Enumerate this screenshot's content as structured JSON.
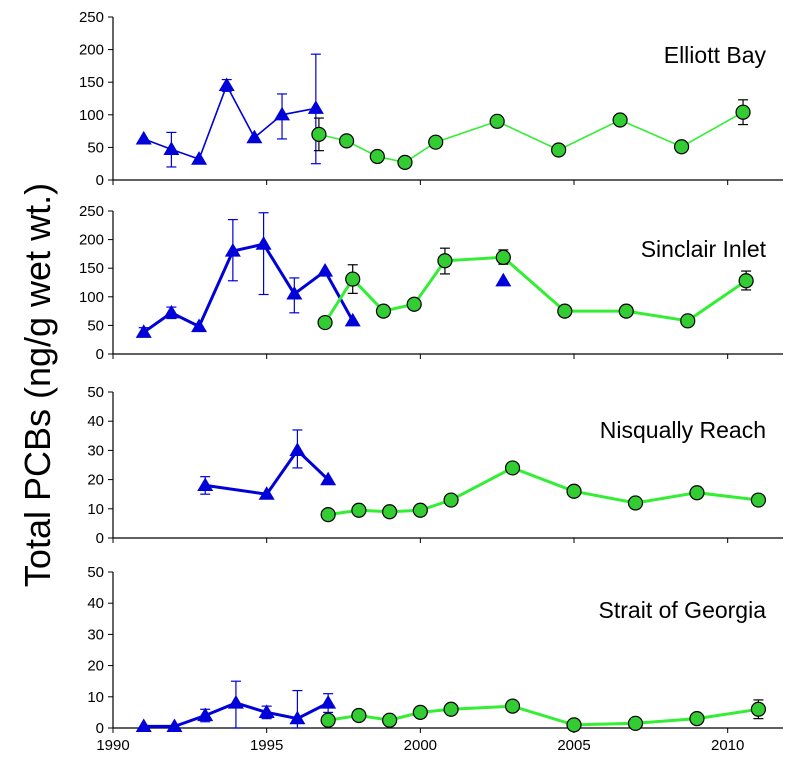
{
  "figure": {
    "ylabel": "Total PCBs (ng/g wet wt.)",
    "x_ticks": [
      1990,
      1995,
      2000,
      2005,
      2010
    ],
    "xlim": [
      1990,
      2011.8
    ]
  },
  "colors": {
    "blue_series": "#0000d8",
    "green_series_line": "#33ee33",
    "green_series_marker": "#33cc33"
  },
  "chart_data": [
    {
      "type": "line",
      "title": "Elliott Bay",
      "ylim": [
        0,
        250
      ],
      "yticks": [
        0,
        50,
        100,
        150,
        200,
        250
      ],
      "series": [
        {
          "marker": "triangle",
          "color": "#0000d8",
          "points": [
            {
              "x": 1991.0,
              "y": 63
            },
            {
              "x": 1991.9,
              "y": 47,
              "err_lo": 20,
              "err_hi": 73
            },
            {
              "x": 1992.8,
              "y": 32
            },
            {
              "x": 1993.7,
              "y": 145,
              "err_lo": 136,
              "err_hi": 154
            },
            {
              "x": 1994.6,
              "y": 65
            },
            {
              "x": 1995.5,
              "y": 100,
              "err_lo": 63,
              "err_hi": 132
            },
            {
              "x": 1996.6,
              "y": 110,
              "err_lo": 25,
              "err_hi": 193
            }
          ]
        },
        {
          "marker": "circle",
          "color": "#33ee33",
          "points": [
            {
              "x": 1996.7,
              "y": 70,
              "err_lo": 45,
              "err_hi": 95
            },
            {
              "x": 1997.6,
              "y": 60
            },
            {
              "x": 1998.6,
              "y": 36
            },
            {
              "x": 1999.5,
              "y": 27
            },
            {
              "x": 2000.5,
              "y": 58
            },
            {
              "x": 2002.5,
              "y": 90
            },
            {
              "x": 2004.5,
              "y": 46
            },
            {
              "x": 2006.5,
              "y": 92
            },
            {
              "x": 2008.5,
              "y": 51
            },
            {
              "x": 2010.5,
              "y": 104,
              "err_lo": 85,
              "err_hi": 123
            }
          ]
        }
      ]
    },
    {
      "type": "line",
      "title": "Sinclair Inlet",
      "ylim": [
        0,
        250
      ],
      "yticks": [
        0,
        50,
        100,
        150,
        200,
        250
      ],
      "series": [
        {
          "marker": "triangle",
          "color": "#0000d8",
          "points": [
            {
              "x": 1991.0,
              "y": 38,
              "err_lo": 30,
              "err_hi": 46
            },
            {
              "x": 1991.9,
              "y": 72,
              "err_lo": 62,
              "err_hi": 82
            },
            {
              "x": 1992.8,
              "y": 48
            },
            {
              "x": 1993.9,
              "y": 180,
              "err_lo": 128,
              "err_hi": 235
            },
            {
              "x": 1994.9,
              "y": 192,
              "err_lo": 104,
              "err_hi": 247
            },
            {
              "x": 1995.9,
              "y": 105,
              "err_lo": 72,
              "err_hi": 133
            },
            {
              "x": 1996.9,
              "y": 145
            },
            {
              "x": 1997.8,
              "y": 58
            }
          ]
        },
        {
          "marker": "circle",
          "color": "#33ee33",
          "points": [
            {
              "x": 1996.9,
              "y": 55
            },
            {
              "x": 1997.8,
              "y": 131,
              "err_lo": 106,
              "err_hi": 156
            },
            {
              "x": 1998.8,
              "y": 75
            },
            {
              "x": 1999.8,
              "y": 87
            },
            {
              "x": 2000.8,
              "y": 163,
              "err_lo": 140,
              "err_hi": 185
            },
            {
              "x": 2002.7,
              "y": 169,
              "err_lo": 157,
              "err_hi": 182
            },
            {
              "x": 2004.7,
              "y": 75
            },
            {
              "x": 2006.7,
              "y": 75
            },
            {
              "x": 2008.7,
              "y": 58
            },
            {
              "x": 2010.6,
              "y": 128,
              "err_lo": 112,
              "err_hi": 145
            }
          ]
        },
        {
          "marker": "triangle",
          "color": "#0000d8",
          "no_line": true,
          "points": [
            {
              "x": 2002.7,
              "y": 128
            }
          ]
        }
      ]
    },
    {
      "type": "line",
      "title": "Nisqually Reach",
      "ylim": [
        0,
        50
      ],
      "yticks": [
        0,
        10,
        20,
        30,
        40,
        50
      ],
      "series": [
        {
          "marker": "triangle",
          "color": "#0000d8",
          "points": [
            {
              "x": 1993.0,
              "y": 18,
              "err_lo": 15,
              "err_hi": 21
            },
            {
              "x": 1995.0,
              "y": 15
            },
            {
              "x": 1996.0,
              "y": 30,
              "err_lo": 24,
              "err_hi": 37
            },
            {
              "x": 1997.0,
              "y": 20
            }
          ]
        },
        {
          "marker": "circle",
          "color": "#33ee33",
          "points": [
            {
              "x": 1997.0,
              "y": 8
            },
            {
              "x": 1998.0,
              "y": 9.5
            },
            {
              "x": 1999.0,
              "y": 9
            },
            {
              "x": 2000.0,
              "y": 9.5
            },
            {
              "x": 2001.0,
              "y": 13
            },
            {
              "x": 2003.0,
              "y": 24
            },
            {
              "x": 2005.0,
              "y": 16
            },
            {
              "x": 2007.0,
              "y": 12
            },
            {
              "x": 2009.0,
              "y": 15.5
            },
            {
              "x": 2011.0,
              "y": 13
            }
          ]
        }
      ]
    },
    {
      "type": "line",
      "title": "Strait of Georgia",
      "ylim": [
        0,
        50
      ],
      "yticks": [
        0,
        10,
        20,
        30,
        40,
        50
      ],
      "series": [
        {
          "marker": "triangle",
          "color": "#0000d8",
          "points": [
            {
              "x": 1991.0,
              "y": 0.5
            },
            {
              "x": 1992.0,
              "y": 0.5
            },
            {
              "x": 1993.0,
              "y": 4,
              "err_lo": 2,
              "err_hi": 6
            },
            {
              "x": 1994.0,
              "y": 8,
              "err_lo": 0,
              "err_hi": 15
            },
            {
              "x": 1995.0,
              "y": 5,
              "err_lo": 3,
              "err_hi": 7
            },
            {
              "x": 1996.0,
              "y": 3,
              "err_lo": 0,
              "err_hi": 12
            },
            {
              "x": 1997.0,
              "y": 8,
              "err_lo": 5,
              "err_hi": 11
            }
          ]
        },
        {
          "marker": "circle",
          "color": "#33ee33",
          "points": [
            {
              "x": 1997.0,
              "y": 2.5
            },
            {
              "x": 1998.0,
              "y": 4
            },
            {
              "x": 1999.0,
              "y": 2.5
            },
            {
              "x": 2000.0,
              "y": 5
            },
            {
              "x": 2001.0,
              "y": 6
            },
            {
              "x": 2003.0,
              "y": 7
            },
            {
              "x": 2005.0,
              "y": 1
            },
            {
              "x": 2007.0,
              "y": 1.5
            },
            {
              "x": 2009.0,
              "y": 3
            },
            {
              "x": 2011.0,
              "y": 6,
              "err_lo": 3,
              "err_hi": 9
            }
          ]
        }
      ]
    }
  ]
}
